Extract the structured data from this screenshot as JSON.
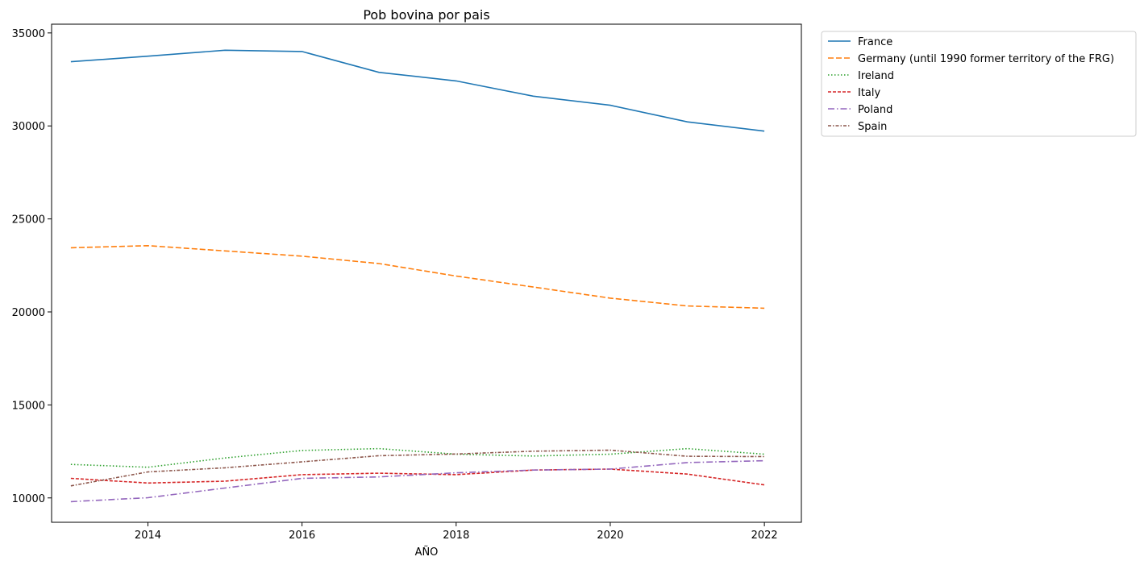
{
  "chart_data": {
    "type": "line",
    "title": "Pob bovina por pais",
    "xlabel": "AÑO",
    "ylabel": "",
    "x": [
      2013,
      2014,
      2015,
      2016,
      2017,
      2018,
      2019,
      2020,
      2021,
      2022
    ],
    "xticks": [
      2014,
      2016,
      2018,
      2020,
      2022
    ],
    "yticks": [
      10000,
      15000,
      20000,
      25000,
      30000,
      35000
    ],
    "xlim": [
      2012.75,
      2022.48
    ],
    "ylim": [
      8690,
      35470
    ],
    "grid": false,
    "legend_position": "outside upper right",
    "series": [
      {
        "name": "France",
        "color": "#1f77b4",
        "dash": "solid",
        "values": [
          33450,
          33750,
          34070,
          34000,
          32880,
          32420,
          31600,
          31110,
          30220,
          29720
        ]
      },
      {
        "name": "Germany (until 1990 former territory of the FRG)",
        "color": "#ff7f0e",
        "dash": "dashed",
        "values": [
          23450,
          23560,
          23280,
          23000,
          22600,
          21930,
          21340,
          20740,
          20320,
          20200
        ]
      },
      {
        "name": "Ireland",
        "color": "#2ca02c",
        "dash": "dotted",
        "values": [
          11800,
          11650,
          12150,
          12550,
          12650,
          12350,
          12250,
          12350,
          12650,
          12350
        ]
      },
      {
        "name": "Italy",
        "color": "#d62728",
        "dash": "densedash",
        "values": [
          11050,
          10800,
          10900,
          11250,
          11330,
          11250,
          11500,
          11550,
          11280,
          10700
        ]
      },
      {
        "name": "Poland",
        "color": "#9467bd",
        "dash": "dashdot",
        "values": [
          9800,
          10010,
          10530,
          11050,
          11130,
          11350,
          11500,
          11550,
          11900,
          12000
        ]
      },
      {
        "name": "Spain",
        "color": "#8c564b",
        "dash": "densedashdot",
        "values": [
          10650,
          11400,
          11620,
          11940,
          12270,
          12360,
          12510,
          12570,
          12240,
          12220
        ]
      }
    ]
  }
}
